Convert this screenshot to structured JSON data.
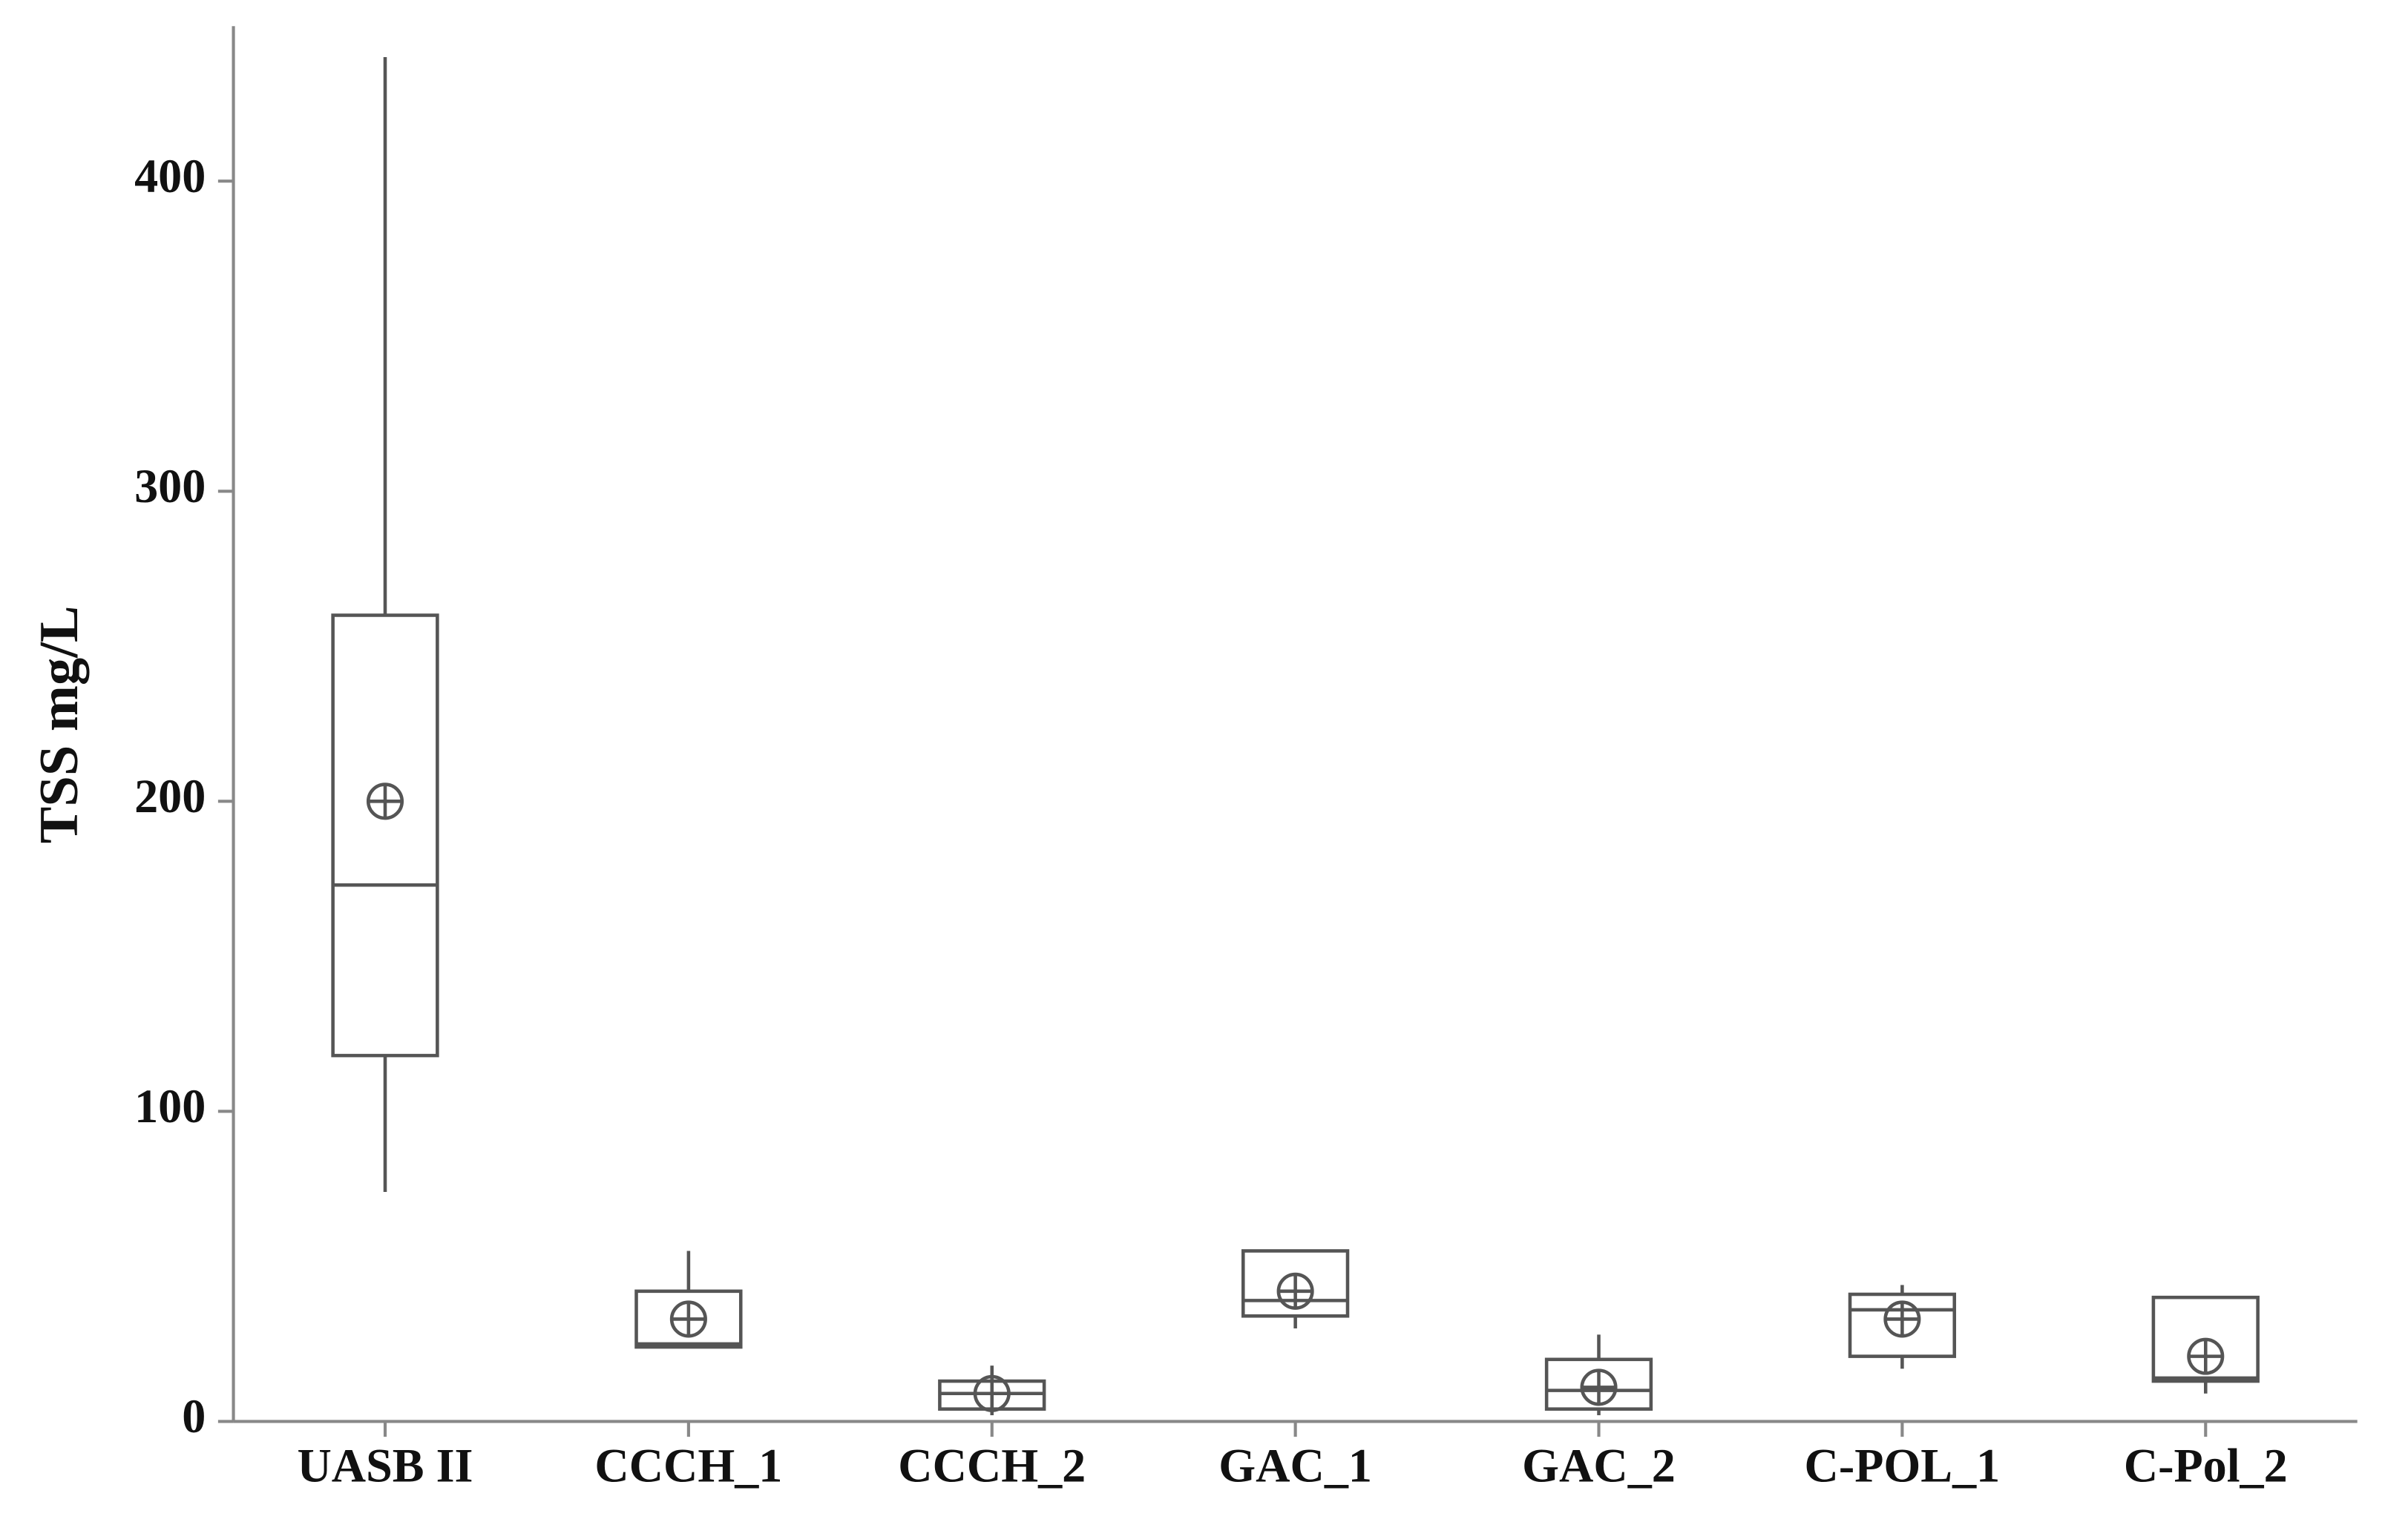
{
  "chart_data": {
    "type": "box",
    "y_label": "TSS mg/L",
    "categories": [
      "UASB II",
      "CCCH_1",
      "CCCH_2",
      "GAC_1",
      "GAC_2",
      "C-POL_1",
      "C-Pol_2"
    ],
    "boxes": [
      {
        "min": 74,
        "q1": 118,
        "median": 173,
        "q3": 260,
        "max": 440,
        "mean": 200
      },
      {
        "min": 24,
        "q1": 24,
        "median": 25,
        "q3": 42,
        "max": 55,
        "mean": 33
      },
      {
        "min": 2,
        "q1": 4,
        "median": 9,
        "q3": 13,
        "max": 18,
        "mean": 9
      },
      {
        "min": 30,
        "q1": 34,
        "median": 39,
        "q3": 55,
        "max": 55,
        "mean": 42
      },
      {
        "min": 2,
        "q1": 4,
        "median": 10,
        "q3": 20,
        "max": 28,
        "mean": 11
      },
      {
        "min": 17,
        "q1": 21,
        "median": 36,
        "q3": 41,
        "max": 44,
        "mean": 33
      },
      {
        "min": 9,
        "q1": 13,
        "median": 14,
        "q3": 40,
        "max": 40,
        "mean": 21
      }
    ],
    "color": "#555555",
    "ylim": [
      0,
      450
    ],
    "yticks": [
      0,
      100,
      200,
      300,
      400
    ],
    "grid": false
  }
}
